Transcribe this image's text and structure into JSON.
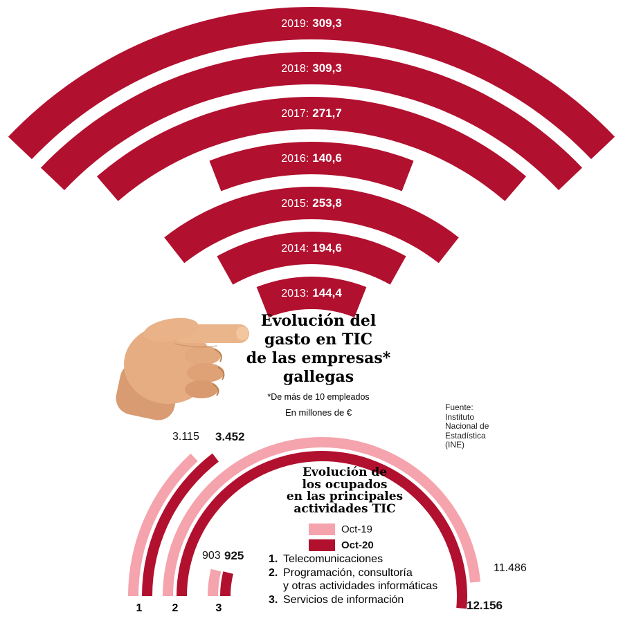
{
  "colors": {
    "crimson": "#b2102f",
    "pink": "#f5a3ad",
    "white": "#ffffff",
    "text": "#111111"
  },
  "top_chart": {
    "title_lines": [
      "Evolución del",
      "gasto en TIC",
      "de las empresas*",
      "gallegas"
    ],
    "footnote": "*De más de 10 empleados",
    "unit_note": "En millones de €"
  },
  "source": {
    "lines": [
      "Fuente:",
      "Instituto",
      "Nacional de",
      "Estadística",
      "(INE)"
    ]
  },
  "bottom_chart": {
    "title_lines": [
      "Evolución de",
      "los ocupados",
      "en las principales",
      "actividades TIC"
    ],
    "foot_labels": [
      "1",
      "2",
      "3"
    ],
    "items": [
      {
        "num": "1.",
        "lines": [
          "Telecomunicaciones"
        ]
      },
      {
        "num": "2.",
        "lines": [
          "Programación, consultoría",
          "y otras actividades informáticas"
        ]
      },
      {
        "num": "3.",
        "lines": [
          "Servicios de información"
        ]
      }
    ]
  },
  "chart_data": [
    {
      "type": "arc-fan",
      "title": "Evolución del gasto en TIC de las empresas gallegas",
      "subtitle": "De más de 10 empleados",
      "unit": "millones de €",
      "series": [
        {
          "year": "2019",
          "label": "2019:",
          "value": 309.3,
          "display": "309,3"
        },
        {
          "year": "2018",
          "label": "2018:",
          "value": 309.3,
          "display": "309,3"
        },
        {
          "year": "2017",
          "label": "2017:",
          "value": 271.7,
          "display": "271,7"
        },
        {
          "year": "2016",
          "label": "2016:",
          "value": 140.6,
          "display": "140,6"
        },
        {
          "year": "2015",
          "label": "2015:",
          "value": 253.8,
          "display": "253,8"
        },
        {
          "year": "2014",
          "label": "2014:",
          "value": 194.6,
          "display": "194,6"
        },
        {
          "year": "2013",
          "label": "2013:",
          "value": 144.4,
          "display": "144,4"
        }
      ]
    },
    {
      "type": "arc-race",
      "title": "Evolución de los ocupados en las principales actividades TIC",
      "categories": [
        "Telecomunicaciones",
        "Programación, consultoría y otras actividades informáticas",
        "Servicios de información"
      ],
      "series": [
        {
          "name": "Oct-19",
          "color": "#f5a3ad",
          "values": [
            3115,
            11486,
            903
          ],
          "displays": [
            "3.115",
            "11.486",
            "903"
          ]
        },
        {
          "name": "Oct-20",
          "color": "#b2102f",
          "values": [
            3452,
            12156,
            925
          ],
          "displays": [
            "3.452",
            "12.156",
            "925"
          ]
        }
      ]
    }
  ]
}
